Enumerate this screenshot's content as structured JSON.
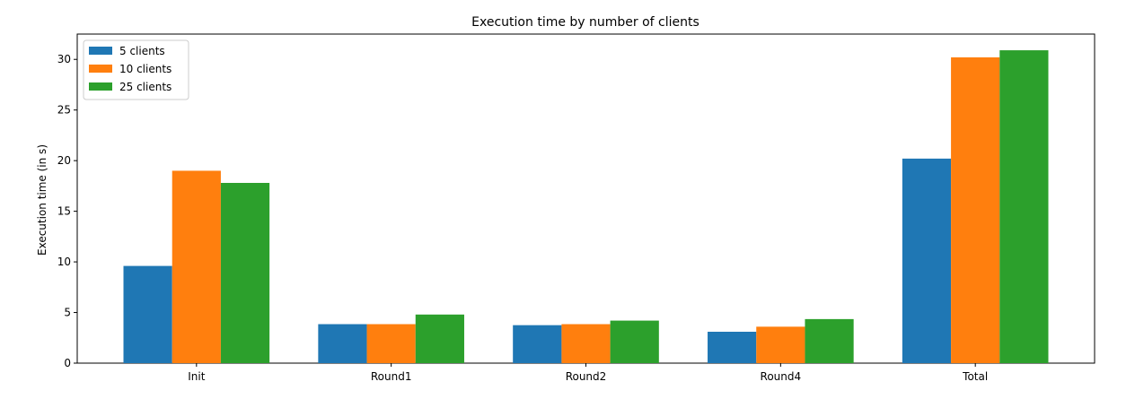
{
  "chart_data": {
    "type": "bar",
    "title": "Execution time by number of clients",
    "xlabel": "",
    "ylabel": "Execution time (in s)",
    "categories": [
      "Init",
      "Round1",
      "Round2",
      "Round4",
      "Total"
    ],
    "series": [
      {
        "name": "5 clients",
        "color": "#1f77b4",
        "values": [
          9.6,
          3.85,
          3.75,
          3.1,
          20.2
        ]
      },
      {
        "name": "10 clients",
        "color": "#ff7f0e",
        "values": [
          19.0,
          3.85,
          3.85,
          3.6,
          30.2
        ]
      },
      {
        "name": "25 clients",
        "color": "#2ca02c",
        "values": [
          17.8,
          4.8,
          4.2,
          4.35,
          30.9
        ]
      }
    ],
    "yticks": [
      0,
      5,
      10,
      15,
      20,
      25,
      30
    ],
    "ylim": [
      0,
      32.5
    ],
    "grid": false,
    "legend_position": "top-left"
  }
}
